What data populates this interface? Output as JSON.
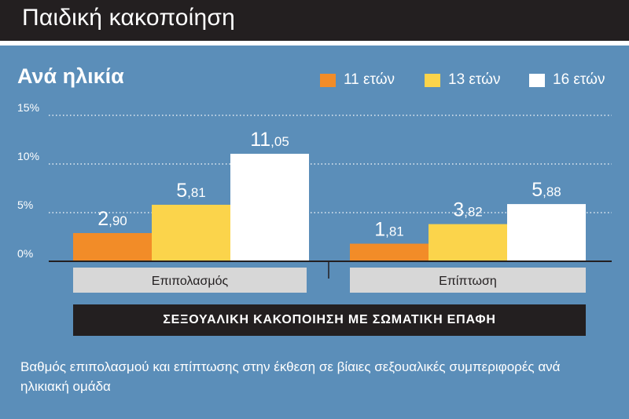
{
  "header": {
    "title": "Παιδική κακοποίηση"
  },
  "subtitle": "Ανά ηλικία",
  "colors": {
    "background": "#5b8eb9",
    "header_bg": "#231f20",
    "orange": "#f28c28",
    "yellow": "#fbd44b",
    "white": "#ffffff",
    "category_bg": "#d7d7d7"
  },
  "chart_data": {
    "type": "bar",
    "categories": [
      "Επιπολασμός",
      "Επίπτωση"
    ],
    "series": [
      {
        "name": "11 ετών",
        "color": "#f28c28",
        "values": [
          2.9,
          1.81
        ],
        "labels": [
          "2,90",
          "1,81"
        ]
      },
      {
        "name": "13 ετών",
        "color": "#fbd44b",
        "values": [
          5.81,
          3.82
        ],
        "labels": [
          "5,81",
          "3,82"
        ]
      },
      {
        "name": "16 ετών",
        "color": "#ffffff",
        "values": [
          11.05,
          5.88
        ],
        "labels": [
          "11,05",
          "5,88"
        ]
      }
    ],
    "ylim": [
      0,
      15
    ],
    "yticks": [
      0,
      5,
      10,
      15
    ],
    "ytick_labels": [
      "0%",
      "5%",
      "10%",
      "15%"
    ],
    "grid": true,
    "legend": "top-right"
  },
  "banner": "ΣΕΞΟΥΑΛΙΚΗ ΚΑΚΟΠΟΙΗΣΗ ΜΕ ΣΩΜΑΤΙΚΗ ΕΠΑΦΗ",
  "caption": "Βαθμός επιπολασμού και επίπτωσης στην έκθεση σε βίαιες σεξουαλικές συμπεριφορές ανά ηλικιακή ομάδα"
}
